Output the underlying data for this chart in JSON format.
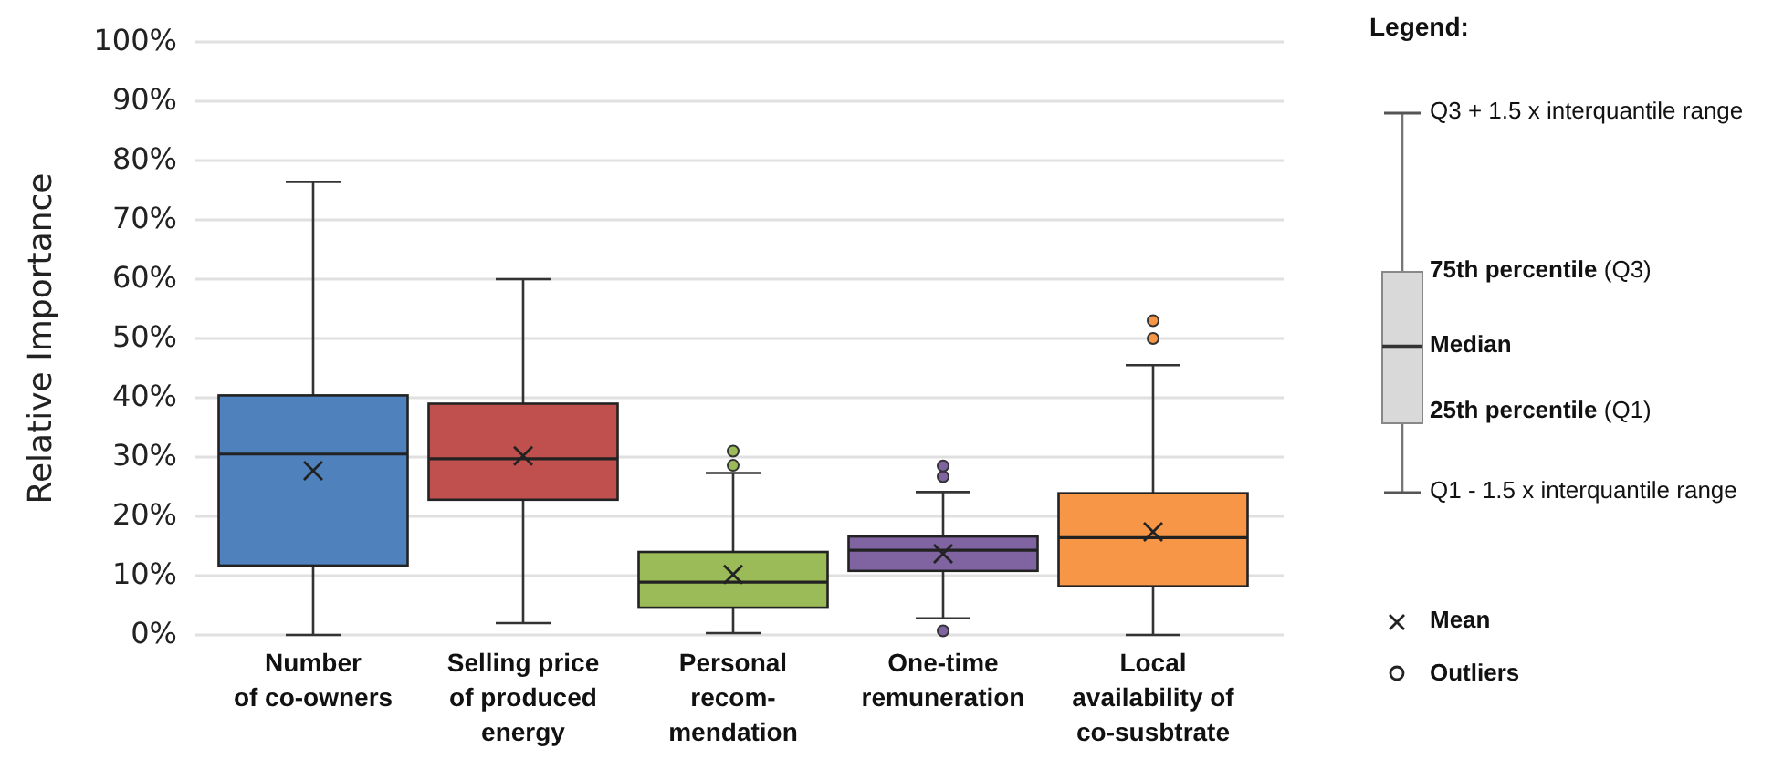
{
  "chart_data": {
    "type": "box",
    "ylabel": "Relative Importance",
    "categories": [
      "Number\nof co-owners",
      "Selling price\nof produced\nenergy",
      "Personal\nrecom-\nmendation",
      "One-time\nremuneration",
      "Local\navailability of\nco-susbtrate"
    ],
    "colors": [
      "#4f81bd",
      "#c0504d",
      "#9bbb59",
      "#8064a2",
      "#f79646"
    ],
    "boxes": [
      {
        "low": 0,
        "q1": 11.7,
        "median": 30.5,
        "q3": 40.4,
        "high": 76.4,
        "mean": 27.7
      },
      {
        "low": 2,
        "q1": 22.8,
        "median": 29.7,
        "q3": 39,
        "high": 60,
        "mean": 30.2
      },
      {
        "low": 0.3,
        "q1": 4.6,
        "median": 8.9,
        "q3": 14,
        "high": 27.3,
        "mean": 10.2,
        "outliers": [
          28.6,
          31
        ]
      },
      {
        "low": 2.8,
        "q1": 10.8,
        "median": 14.3,
        "q3": 16.6,
        "high": 24.1,
        "mean": 13.7,
        "outliers": [
          0.7,
          26.7,
          28.5
        ]
      },
      {
        "low": 0,
        "q1": 8.2,
        "median": 16.4,
        "q3": 23.9,
        "high": 45.5,
        "mean": 17.4,
        "outliers": [
          50,
          53
        ]
      }
    ],
    "ylim": [
      0,
      100
    ],
    "yticks": [
      {
        "value": 0,
        "label": "0%"
      },
      {
        "value": 10,
        "label": "10%"
      },
      {
        "value": 20,
        "label": "20%"
      },
      {
        "value": 30,
        "label": "30%"
      },
      {
        "value": 40,
        "label": "40%"
      },
      {
        "value": 50,
        "label": "50%"
      },
      {
        "value": 60,
        "label": "60%"
      },
      {
        "value": 70,
        "label": "70%"
      },
      {
        "value": 80,
        "label": "80%"
      },
      {
        "value": 90,
        "label": "90%"
      },
      {
        "value": 100,
        "label": "100%"
      }
    ],
    "grid": "y",
    "marker": "cross",
    "legend_title": "Legend:",
    "annotations": [
      "Q3 + 1.5 x interquantile range",
      "75th percentile (Q3)",
      "Median",
      "25th percentile (Q1)",
      "Q1 - 1.5 x interquantile range",
      "Mean",
      "Outliers"
    ]
  }
}
